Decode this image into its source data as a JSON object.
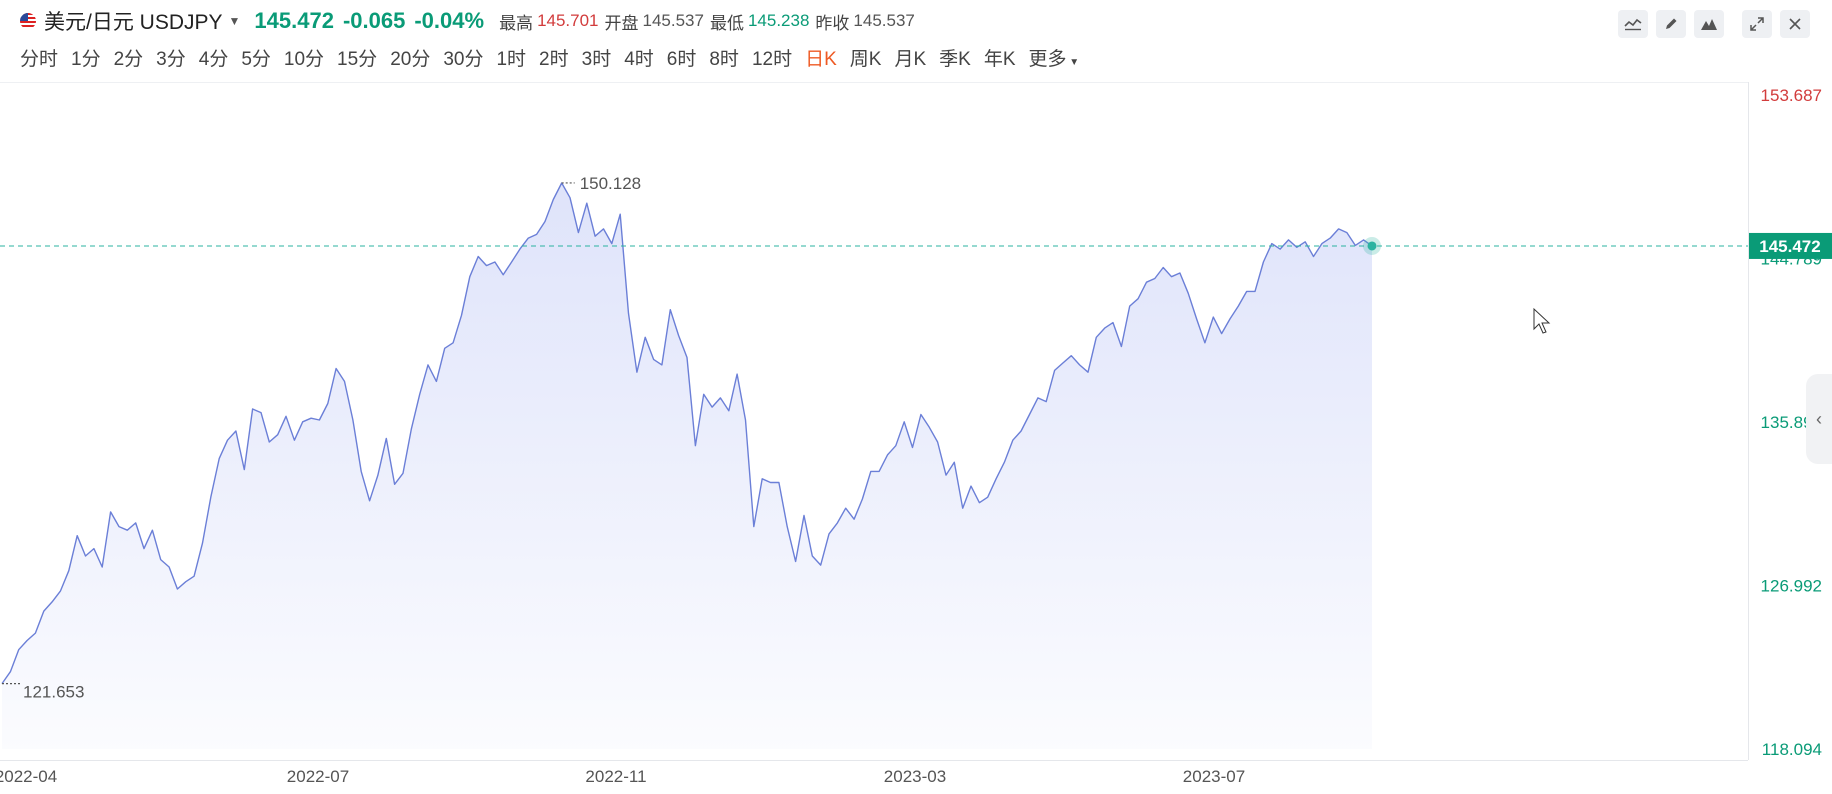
{
  "header": {
    "pair_name": "美元/日元 USDJPY",
    "price": "145.472",
    "change": "-0.065",
    "change_pct": "-0.04%",
    "high_label": "最高",
    "high_value": "145.701",
    "open_label": "开盘",
    "open_value": "145.537",
    "low_label": "最低",
    "low_value": "145.238",
    "prev_close_label": "昨收",
    "prev_close_value": "145.537"
  },
  "toolbar": {
    "icons": [
      "indicator-icon",
      "draw-icon",
      "chart-type-icon",
      "expand-icon",
      "close-icon"
    ]
  },
  "periods": [
    "分时",
    "1分",
    "2分",
    "3分",
    "4分",
    "5分",
    "10分",
    "15分",
    "20分",
    "30分",
    "1时",
    "2时",
    "3时",
    "4时",
    "6时",
    "8时",
    "12时",
    "日K",
    "周K",
    "月K",
    "季K",
    "年K",
    "更多"
  ],
  "active_period": "日K",
  "colors": {
    "line": "#6b7fd7",
    "fill_top": "#dde2fa",
    "up": "#d23c3c",
    "down": "#0a9b77",
    "current_line": "#2bb3a0"
  },
  "chart_data": {
    "type": "area",
    "y_range": [
      118.094,
      153.687
    ],
    "y_ticks": [
      "153.687",
      "144.789",
      "135.890",
      "126.992",
      "118.094"
    ],
    "x_ticks": [
      "2022-04",
      "2022-07",
      "2022-11",
      "2023-03",
      "2023-07"
    ],
    "current_price_label": "145.472",
    "max_label": "150.128",
    "min_label": "121.653",
    "series": [
      {
        "values": [
          121.653,
          122.3,
          123.5,
          124.0,
          124.4,
          125.6,
          126.1,
          126.7,
          127.8,
          129.7,
          128.6,
          129.0,
          128.0,
          131.0,
          130.2,
          130.0,
          130.4,
          129.0,
          130.0,
          128.4,
          128.0,
          126.8,
          127.2,
          127.5,
          129.3,
          131.8,
          133.9,
          134.9,
          135.4,
          133.3,
          136.6,
          136.4,
          134.8,
          135.2,
          136.2,
          134.9,
          135.9,
          136.1,
          136.0,
          136.9,
          138.8,
          138.1,
          136.0,
          133.2,
          131.6,
          133.0,
          135.0,
          132.5,
          133.1,
          135.5,
          137.4,
          139.0,
          138.1,
          139.9,
          140.2,
          141.7,
          143.8,
          144.9,
          144.4,
          144.6,
          143.9,
          144.6,
          145.3,
          145.9,
          146.1,
          146.8,
          148.0,
          148.9,
          148.1,
          146.2,
          147.8,
          146.0,
          146.4,
          145.6,
          147.2,
          141.8,
          138.6,
          140.5,
          139.3,
          139.0,
          142.0,
          140.6,
          139.4,
          134.6,
          137.4,
          136.7,
          137.2,
          136.5,
          138.5,
          136.0,
          130.2,
          132.8,
          132.6,
          132.6,
          130.2,
          128.3,
          130.8,
          128.6,
          128.1,
          129.8,
          130.4,
          131.2,
          130.6,
          131.7,
          133.2,
          133.2,
          134.1,
          134.6,
          135.9,
          134.5,
          136.3,
          135.6,
          134.8,
          133.0,
          133.7,
          131.2,
          132.4,
          131.5,
          131.8,
          132.8,
          133.7,
          134.9,
          135.4,
          136.3,
          137.2,
          137.0,
          138.7,
          139.1,
          139.5,
          139.0,
          138.6,
          140.5,
          141.0,
          141.3,
          140.0,
          142.2,
          142.6,
          143.5,
          143.7,
          144.3,
          143.8,
          144.0,
          142.9,
          141.5,
          140.2,
          141.6,
          140.7,
          141.5,
          142.2,
          143.0,
          143.0,
          144.6,
          145.6,
          145.3,
          145.8,
          145.4,
          145.7,
          144.9,
          145.6,
          145.9,
          146.4,
          146.2,
          145.5,
          145.8,
          145.472
        ]
      }
    ]
  }
}
